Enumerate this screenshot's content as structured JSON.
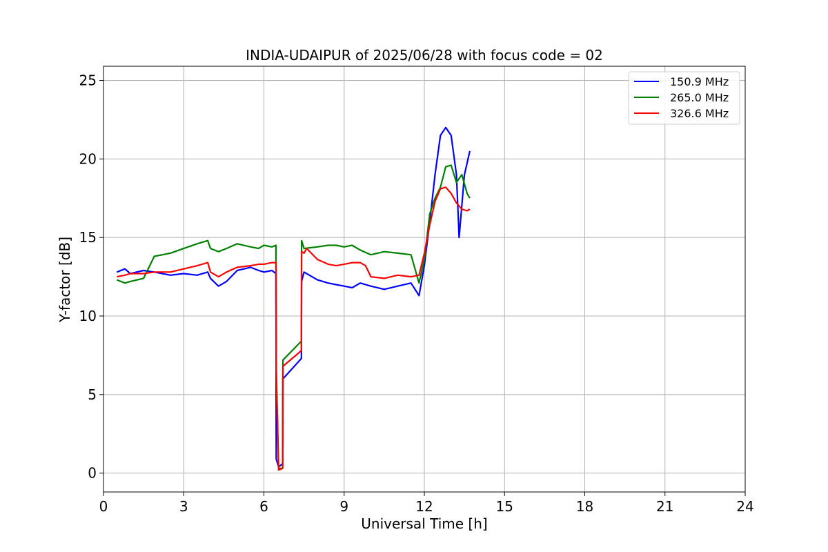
{
  "chart_data": {
    "type": "line",
    "title": "INDIA-UDAIPUR of 2025/06/28 with focus code = 02",
    "xlabel": "Universal Time [h]",
    "ylabel": "Y-factor [dB]",
    "xlim": [
      0,
      24
    ],
    "ylim": [
      -1.2,
      25.9
    ],
    "xticks": [
      0,
      3,
      6,
      9,
      12,
      15,
      18,
      21,
      24
    ],
    "yticks": [
      0,
      5,
      10,
      15,
      20,
      25
    ],
    "grid": true,
    "legend_position": "top-right",
    "series": [
      {
        "name": "150.9 MHz",
        "color": "#0000ff",
        "x": [
          0.5,
          0.8,
          1.0,
          1.5,
          1.9,
          2.5,
          3.0,
          3.5,
          3.9,
          4.0,
          4.3,
          4.6,
          5.0,
          5.5,
          5.8,
          6.0,
          6.3,
          6.45,
          6.46,
          6.55,
          6.7,
          6.71,
          7.4,
          7.41,
          7.5,
          8.0,
          8.4,
          8.7,
          9.0,
          9.3,
          9.6,
          10.0,
          10.5,
          11.0,
          11.5,
          11.8,
          12.0,
          12.2,
          12.4,
          12.6,
          12.8,
          13.0,
          13.2,
          13.3,
          13.5,
          13.7
        ],
        "y": [
          12.8,
          13.0,
          12.7,
          12.9,
          12.8,
          12.6,
          12.7,
          12.6,
          12.8,
          12.4,
          11.9,
          12.2,
          12.9,
          13.1,
          12.9,
          12.8,
          12.9,
          12.7,
          0.9,
          0.4,
          0.6,
          6.0,
          7.3,
          12.2,
          12.8,
          12.3,
          12.1,
          12.0,
          11.9,
          11.8,
          12.1,
          11.9,
          11.7,
          11.9,
          12.1,
          11.3,
          13.2,
          16.0,
          19.0,
          21.5,
          22.0,
          21.5,
          19.0,
          15.0,
          19.0,
          20.5
        ]
      },
      {
        "name": "265.0 MHz",
        "color": "#008000",
        "x": [
          0.5,
          0.8,
          1.0,
          1.5,
          1.9,
          2.5,
          3.0,
          3.5,
          3.9,
          4.0,
          4.3,
          4.6,
          5.0,
          5.5,
          5.8,
          6.0,
          6.3,
          6.45,
          6.46,
          6.55,
          6.7,
          6.71,
          7.4,
          7.41,
          7.5,
          8.0,
          8.4,
          8.7,
          9.0,
          9.3,
          9.6,
          10.0,
          10.5,
          11.0,
          11.5,
          11.8,
          12.0,
          12.2,
          12.4,
          12.6,
          12.8,
          13.0,
          13.2,
          13.4,
          13.6,
          13.7
        ],
        "y": [
          12.3,
          12.1,
          12.2,
          12.4,
          13.8,
          14.0,
          14.3,
          14.6,
          14.8,
          14.3,
          14.1,
          14.3,
          14.6,
          14.4,
          14.3,
          14.5,
          14.4,
          14.5,
          6.9,
          0.3,
          0.3,
          7.2,
          8.4,
          14.8,
          14.3,
          14.4,
          14.5,
          14.5,
          14.4,
          14.5,
          14.2,
          13.9,
          14.1,
          14.0,
          13.9,
          12.1,
          13.6,
          16.5,
          17.5,
          18.2,
          19.5,
          19.6,
          18.5,
          19.0,
          17.8,
          17.5
        ]
      },
      {
        "name": "326.6 MHz",
        "color": "#ff0000",
        "x": [
          0.5,
          0.8,
          1.0,
          1.5,
          1.9,
          2.5,
          3.0,
          3.5,
          3.9,
          4.0,
          4.3,
          4.6,
          5.0,
          5.5,
          5.8,
          6.0,
          6.3,
          6.45,
          6.46,
          6.55,
          6.7,
          6.71,
          7.4,
          7.41,
          7.5,
          7.6,
          8.0,
          8.4,
          8.7,
          9.0,
          9.3,
          9.6,
          9.8,
          10.0,
          10.5,
          11.0,
          11.5,
          11.8,
          12.0,
          12.2,
          12.4,
          12.6,
          12.8,
          13.0,
          13.2,
          13.4,
          13.6,
          13.7
        ],
        "y": [
          12.5,
          12.6,
          12.7,
          12.7,
          12.8,
          12.8,
          13.0,
          13.2,
          13.4,
          12.8,
          12.5,
          12.8,
          13.1,
          13.2,
          13.3,
          13.3,
          13.4,
          13.4,
          6.2,
          0.2,
          0.3,
          6.8,
          7.8,
          14.1,
          14.0,
          14.3,
          13.6,
          13.3,
          13.2,
          13.3,
          13.4,
          13.4,
          13.2,
          12.5,
          12.4,
          12.6,
          12.5,
          12.6,
          14.0,
          15.8,
          17.3,
          18.1,
          18.2,
          17.8,
          17.2,
          16.8,
          16.7,
          16.8
        ]
      }
    ]
  }
}
